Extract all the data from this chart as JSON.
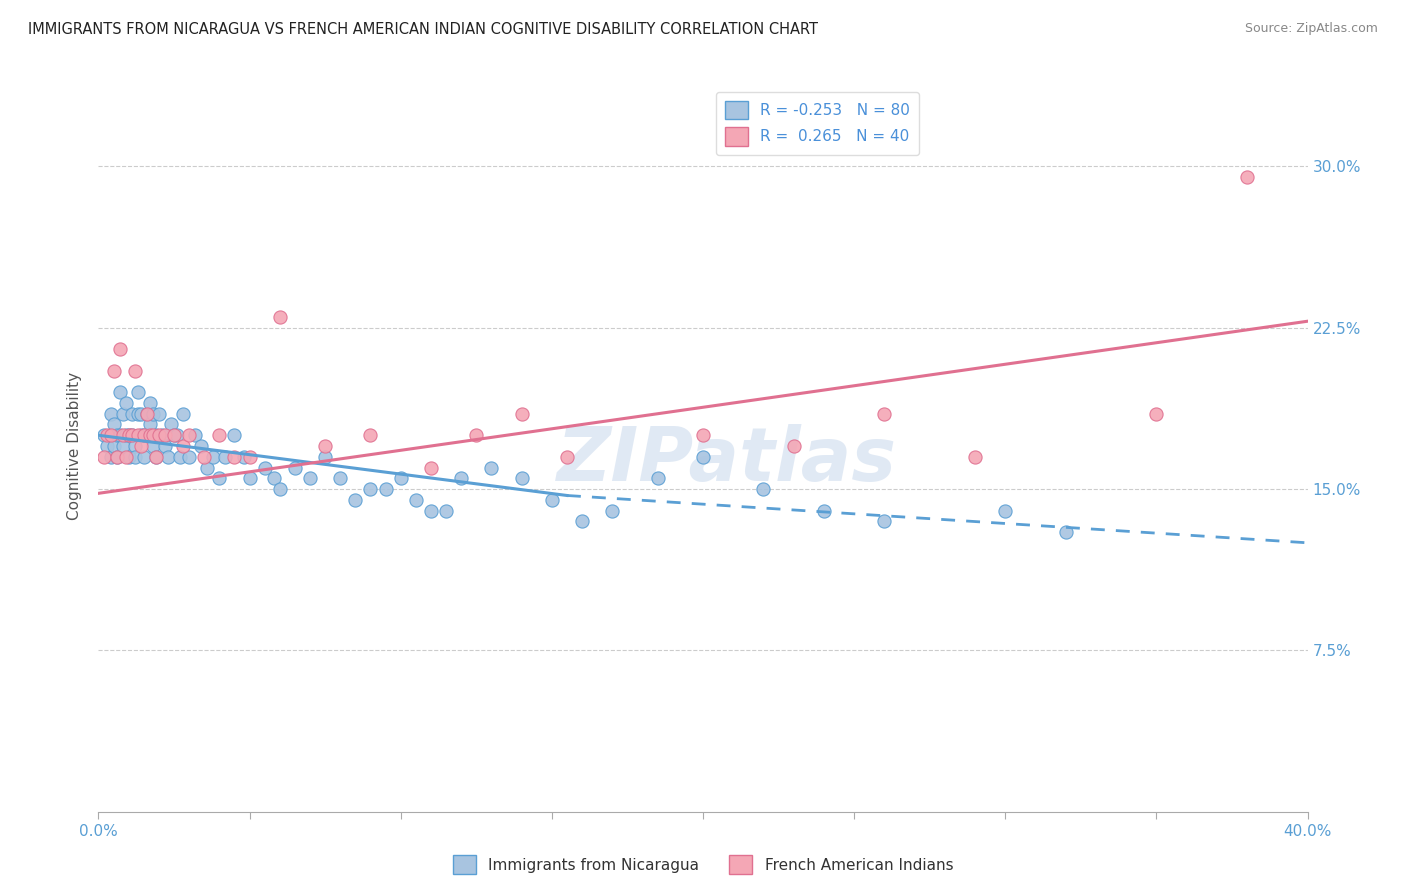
{
  "title": "IMMIGRANTS FROM NICARAGUA VS FRENCH AMERICAN INDIAN COGNITIVE DISABILITY CORRELATION CHART",
  "source": "Source: ZipAtlas.com",
  "ylabel": "Cognitive Disability",
  "ytick_labels": [
    "7.5%",
    "15.0%",
    "22.5%",
    "30.0%"
  ],
  "ytick_values": [
    0.075,
    0.15,
    0.225,
    0.3
  ],
  "xtick_values": [
    0.0,
    0.05,
    0.1,
    0.15,
    0.2,
    0.25,
    0.3,
    0.35,
    0.4
  ],
  "xlim": [
    0.0,
    0.4
  ],
  "ylim": [
    0.0,
    0.34
  ],
  "blue_R": -0.253,
  "blue_N": 80,
  "pink_R": 0.265,
  "pink_N": 40,
  "blue_color": "#a8c4e0",
  "pink_color": "#f4a7b5",
  "blue_line_color": "#5a9fd4",
  "pink_line_color": "#e07090",
  "legend_label_blue": "Immigrants from Nicaragua",
  "legend_label_pink": "French American Indians",
  "watermark": "ZIPatlas",
  "blue_line_start_x": 0.0,
  "blue_line_start_y": 0.175,
  "blue_line_solid_end_x": 0.155,
  "blue_line_solid_end_y": 0.147,
  "blue_line_dash_end_x": 0.4,
  "blue_line_dash_end_y": 0.125,
  "pink_line_start_x": 0.0,
  "pink_line_start_y": 0.148,
  "pink_line_end_x": 0.4,
  "pink_line_end_y": 0.228,
  "blue_scatter_x": [
    0.002,
    0.003,
    0.004,
    0.004,
    0.005,
    0.005,
    0.006,
    0.006,
    0.007,
    0.007,
    0.008,
    0.008,
    0.009,
    0.009,
    0.01,
    0.01,
    0.011,
    0.011,
    0.012,
    0.012,
    0.013,
    0.013,
    0.014,
    0.014,
    0.015,
    0.015,
    0.016,
    0.016,
    0.017,
    0.017,
    0.018,
    0.018,
    0.019,
    0.019,
    0.02,
    0.021,
    0.022,
    0.023,
    0.024,
    0.025,
    0.026,
    0.027,
    0.028,
    0.03,
    0.032,
    0.034,
    0.036,
    0.038,
    0.04,
    0.042,
    0.045,
    0.048,
    0.05,
    0.055,
    0.058,
    0.06,
    0.065,
    0.07,
    0.075,
    0.08,
    0.085,
    0.09,
    0.095,
    0.1,
    0.105,
    0.11,
    0.115,
    0.12,
    0.13,
    0.14,
    0.15,
    0.16,
    0.17,
    0.185,
    0.2,
    0.22,
    0.24,
    0.26,
    0.3,
    0.32
  ],
  "blue_scatter_y": [
    0.175,
    0.17,
    0.185,
    0.165,
    0.18,
    0.17,
    0.175,
    0.165,
    0.195,
    0.175,
    0.185,
    0.17,
    0.175,
    0.19,
    0.175,
    0.165,
    0.185,
    0.175,
    0.17,
    0.165,
    0.185,
    0.195,
    0.175,
    0.185,
    0.175,
    0.165,
    0.185,
    0.175,
    0.19,
    0.18,
    0.185,
    0.17,
    0.175,
    0.165,
    0.185,
    0.175,
    0.17,
    0.165,
    0.18,
    0.175,
    0.175,
    0.165,
    0.185,
    0.165,
    0.175,
    0.17,
    0.16,
    0.165,
    0.155,
    0.165,
    0.175,
    0.165,
    0.155,
    0.16,
    0.155,
    0.15,
    0.16,
    0.155,
    0.165,
    0.155,
    0.145,
    0.15,
    0.15,
    0.155,
    0.145,
    0.14,
    0.14,
    0.155,
    0.16,
    0.155,
    0.145,
    0.135,
    0.14,
    0.155,
    0.165,
    0.15,
    0.14,
    0.135,
    0.14,
    0.13
  ],
  "pink_scatter_x": [
    0.002,
    0.003,
    0.004,
    0.005,
    0.006,
    0.007,
    0.008,
    0.009,
    0.01,
    0.011,
    0.012,
    0.013,
    0.014,
    0.015,
    0.016,
    0.017,
    0.018,
    0.019,
    0.02,
    0.022,
    0.025,
    0.028,
    0.03,
    0.035,
    0.04,
    0.045,
    0.05,
    0.06,
    0.075,
    0.09,
    0.11,
    0.125,
    0.14,
    0.155,
    0.2,
    0.23,
    0.26,
    0.29,
    0.35,
    0.38
  ],
  "pink_scatter_y": [
    0.165,
    0.175,
    0.175,
    0.205,
    0.165,
    0.215,
    0.175,
    0.165,
    0.175,
    0.175,
    0.205,
    0.175,
    0.17,
    0.175,
    0.185,
    0.175,
    0.175,
    0.165,
    0.175,
    0.175,
    0.175,
    0.17,
    0.175,
    0.165,
    0.175,
    0.165,
    0.165,
    0.23,
    0.17,
    0.175,
    0.16,
    0.175,
    0.185,
    0.165,
    0.175,
    0.17,
    0.185,
    0.165,
    0.185,
    0.295
  ]
}
